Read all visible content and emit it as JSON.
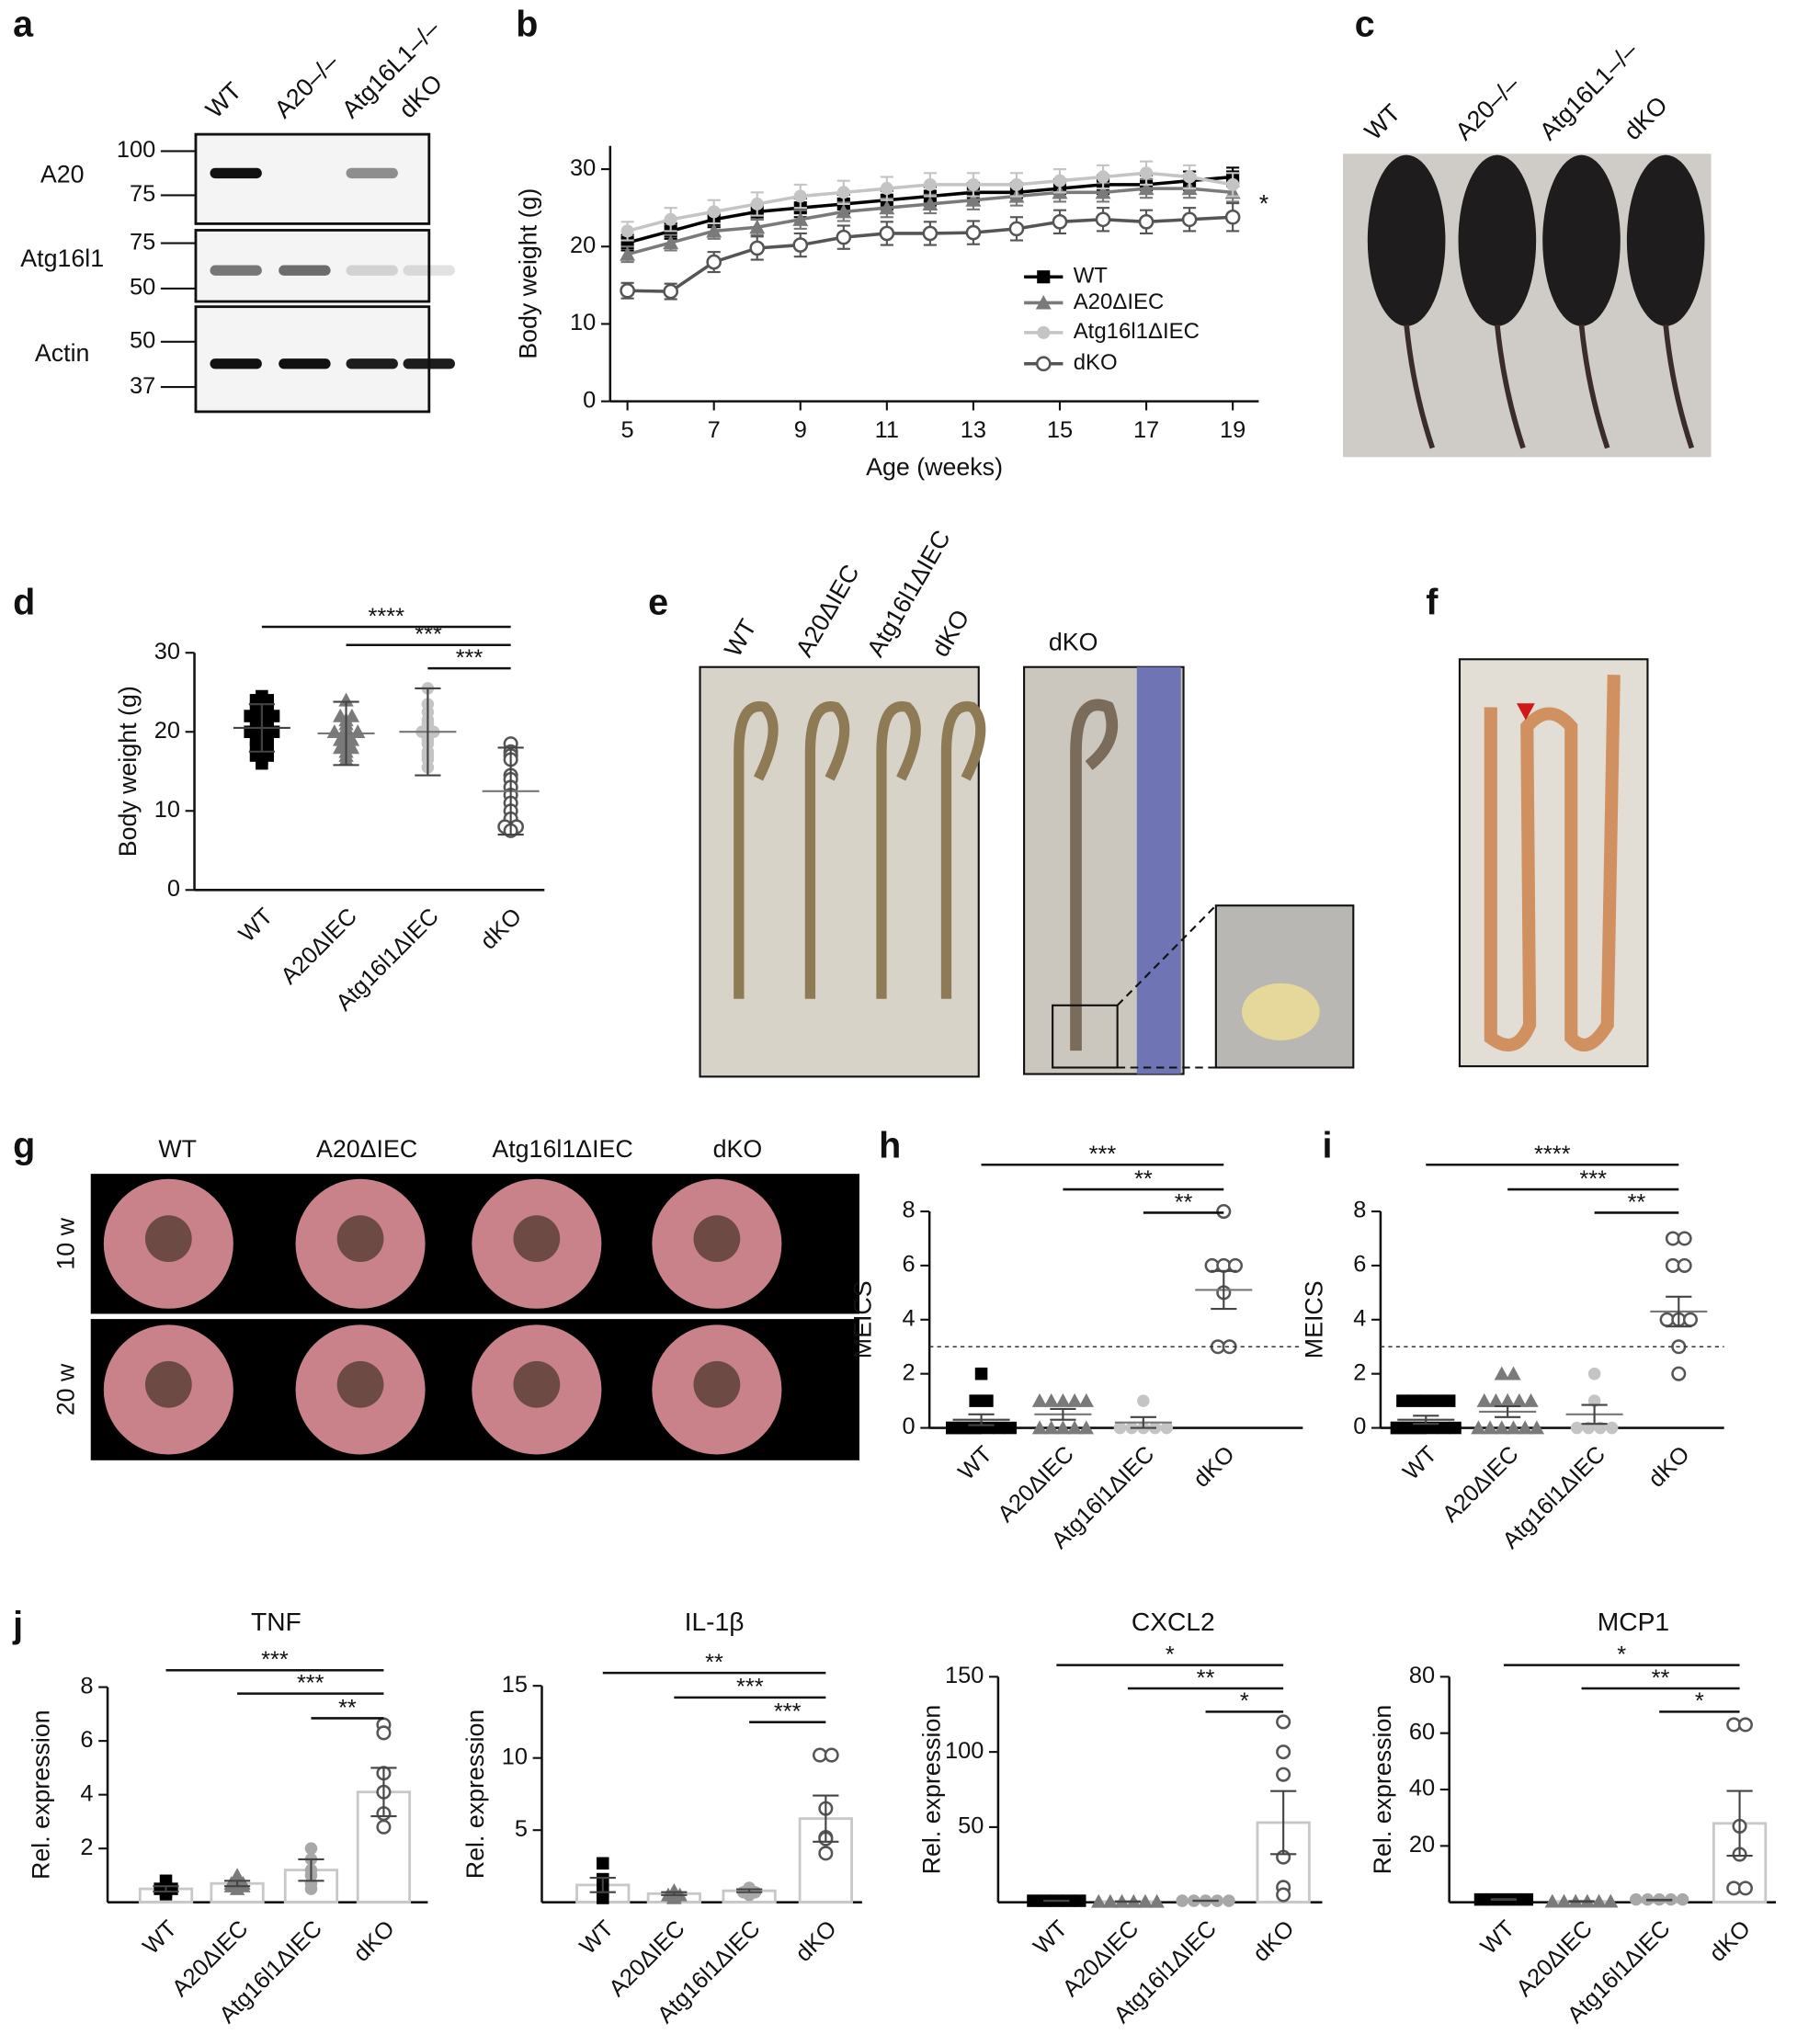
{
  "panel_labels": [
    "a",
    "b",
    "c",
    "d",
    "e",
    "f",
    "g",
    "h",
    "i",
    "j"
  ],
  "blot": {
    "lanes": [
      "WT",
      "A20–/–",
      "Atg16L1–/–",
      "dKO"
    ],
    "rows": [
      {
        "label": "A20",
        "markers": [
          "100",
          "75"
        ]
      },
      {
        "label": "Atg16l1",
        "markers": [
          "75",
          "50"
        ]
      },
      {
        "label": "Actin",
        "markers": [
          "50",
          "37"
        ]
      }
    ]
  },
  "photo_c": {
    "labels": [
      "WT",
      "A20–/–",
      "Atg16L1–/–",
      "dKO"
    ]
  },
  "photo_e": {
    "labels": [
      "WT",
      "A20ΔIEC",
      "Atg16l1ΔIEC",
      "dKO"
    ],
    "inset_label": "dKO"
  },
  "endoscopy_g": {
    "columns": [
      "WT",
      "A20ΔIEC",
      "Atg16l1ΔIEC",
      "dKO"
    ],
    "rows": [
      "10 w",
      "20 w"
    ]
  },
  "chart_data": [
    {
      "type": "line",
      "xlabel": "Age (weeks)",
      "ylabel": "Body weight (g)",
      "annotation": "*",
      "x": [
        5,
        6,
        7,
        8,
        9,
        10,
        11,
        12,
        13,
        14,
        15,
        16,
        17,
        18,
        19
      ],
      "xlim": [
        4.6,
        19.6
      ],
      "ylim": [
        0,
        33
      ],
      "xticks": [
        5,
        7,
        9,
        11,
        13,
        15,
        17,
        19
      ],
      "yticks": [
        0,
        10,
        20,
        30
      ],
      "series": [
        {
          "name": "WT",
          "color": "#000000",
          "marker": "square",
          "values": [
            20.5,
            22,
            23.5,
            24.5,
            25,
            25.5,
            26,
            26.5,
            27,
            27,
            27.5,
            28,
            28,
            28.5,
            29
          ],
          "errors": [
            1,
            1,
            1,
            1,
            1.2,
            1.2,
            1.2,
            1.2,
            1.2,
            1.2,
            1.2,
            1.2,
            1.2,
            1.2,
            1.2
          ]
        },
        {
          "name": "A20ΔIEC",
          "color": "#7a7a7a",
          "marker": "triangle",
          "values": [
            19,
            20.5,
            22,
            22.5,
            23.5,
            24.5,
            25,
            25.5,
            26,
            26.5,
            27,
            27,
            27.5,
            27.5,
            27
          ],
          "errors": [
            1,
            1,
            1,
            1,
            1.2,
            1.2,
            1.2,
            1.2,
            1.2,
            1.2,
            1.2,
            1.2,
            1.2,
            1.2,
            1.2
          ]
        },
        {
          "name": "Atg16l1ΔIEC",
          "color": "#c4c4c4",
          "marker": "circle",
          "values": [
            22,
            23.5,
            24.5,
            25.5,
            26.5,
            27,
            27.5,
            28,
            28,
            28,
            28.5,
            29,
            29.5,
            29,
            28
          ],
          "errors": [
            1.2,
            1.5,
            1.5,
            1.5,
            1.5,
            1.5,
            1.5,
            1.5,
            1.5,
            1.5,
            1.5,
            1.5,
            1.5,
            1.5,
            1.5
          ]
        },
        {
          "name": "dKO",
          "color": "#555555",
          "marker": "open-circle",
          "values": [
            14.3,
            14.2,
            18,
            19.8,
            20.2,
            21.2,
            21.7,
            21.7,
            21.8,
            22.3,
            23.2,
            23.5,
            23.2,
            23.5,
            23.8
          ],
          "errors": [
            1,
            1,
            1.3,
            1.5,
            1.5,
            1.5,
            1.5,
            1.5,
            1.5,
            1.5,
            1.5,
            1.5,
            1.5,
            1.5,
            1.8
          ]
        }
      ]
    },
    {
      "type": "dot",
      "ylabel": "Body weight (g)",
      "categories": [
        "WT",
        "A20ΔIEC",
        "Atg16l1ΔIEC",
        "dKO"
      ],
      "ylim": [
        0,
        30
      ],
      "yticks": [
        0,
        10,
        20,
        30
      ],
      "colors": [
        "#000000",
        "#7a7a7a",
        "#c4c4c4",
        "#555555"
      ],
      "markers": [
        "square",
        "triangle",
        "circle",
        "open-circle"
      ],
      "points": [
        [
          24.5,
          24,
          23.5,
          23,
          22.5,
          22,
          22,
          21.5,
          21,
          21,
          20.5,
          20,
          20,
          19.5,
          19,
          18.5,
          18,
          17.5,
          17,
          16.5,
          16,
          24,
          23,
          22,
          20,
          19,
          18,
          17
        ],
        [
          24,
          22,
          21.5,
          21,
          20.5,
          20,
          20,
          19.5,
          19,
          19,
          18.5,
          18,
          17.5,
          17,
          16.5,
          22,
          20,
          18
        ],
        [
          25.5,
          23.5,
          22.5,
          21.5,
          21,
          20,
          20,
          19.5,
          19,
          18.5,
          17.5,
          17,
          16.5,
          15.5
        ],
        [
          18.5,
          17.5,
          17,
          16.5,
          14.5,
          14,
          13,
          12,
          11,
          10,
          9,
          8,
          8,
          7.5
        ]
      ],
      "means": [
        20.5,
        19.8,
        20,
        12.5
      ],
      "errors": [
        3,
        4,
        5.5,
        5.5
      ],
      "significance": [
        "****",
        "***",
        "***"
      ]
    },
    {
      "type": "dot",
      "ylabel": "MEICS",
      "categories": [
        "WT",
        "A20ΔIEC",
        "Atg16l1ΔIEC",
        "dKO"
      ],
      "ylim": [
        0,
        8
      ],
      "yticks": [
        0,
        2,
        4,
        6,
        8
      ],
      "threshold": 3,
      "colors": [
        "#000000",
        "#7a7a7a",
        "#c4c4c4",
        "#555555"
      ],
      "markers": [
        "square",
        "triangle",
        "circle",
        "open-circle"
      ],
      "points": [
        [
          2,
          1,
          1,
          0,
          0,
          0,
          0,
          0,
          0,
          0,
          0,
          0
        ],
        [
          1,
          1,
          1,
          1,
          1,
          0,
          0,
          0,
          0,
          0
        ],
        [
          1,
          0,
          0,
          0,
          0,
          0
        ],
        [
          8,
          6,
          6,
          6,
          5,
          3,
          3
        ]
      ],
      "means": [
        0.3,
        0.5,
        0.2,
        5.1
      ],
      "errors": [
        0.2,
        0.2,
        0.2,
        0.7
      ],
      "significance": [
        "***",
        "**",
        "**"
      ]
    },
    {
      "type": "dot",
      "ylabel": "MEICS",
      "categories": [
        "WT",
        "A20ΔIEC",
        "Atg16l1ΔIEC",
        "dKO"
      ],
      "ylim": [
        0,
        8
      ],
      "yticks": [
        0,
        2,
        4,
        6,
        8
      ],
      "threshold": 3,
      "colors": [
        "#000000",
        "#7a7a7a",
        "#c4c4c4",
        "#555555"
      ],
      "markers": [
        "square",
        "triangle",
        "circle",
        "open-circle"
      ],
      "points": [
        [
          1,
          1,
          1,
          1,
          1,
          0,
          0,
          0,
          0,
          0,
          0,
          0,
          0,
          0
        ],
        [
          2,
          2,
          1,
          1,
          1,
          1,
          1,
          0,
          0,
          0,
          0,
          0,
          0
        ],
        [
          2,
          1,
          0,
          0,
          0,
          0
        ],
        [
          7,
          7,
          6,
          6,
          4,
          4,
          4,
          3,
          2
        ]
      ],
      "means": [
        0.3,
        0.6,
        0.5,
        4.3
      ],
      "errors": [
        0.15,
        0.2,
        0.35,
        0.55
      ],
      "significance": [
        "****",
        "***",
        "**"
      ]
    },
    {
      "type": "bar",
      "title": "TNF",
      "ylabel": "Rel. expression",
      "categories": [
        "WT",
        "A20ΔIEC",
        "Atg16l1ΔIEC",
        "dKO"
      ],
      "ylim": [
        0,
        8
      ],
      "yticks": [
        2,
        4,
        6,
        8
      ],
      "colors": [
        "#000000",
        "#7a7a7a",
        "#a8a8a8",
        "#555555"
      ],
      "markers": [
        "square",
        "triangle",
        "circle",
        "open-circle"
      ],
      "points": [
        [
          0.8,
          0.5,
          0.3,
          0.4,
          0.5
        ],
        [
          1,
          0.8,
          0.7,
          0.6,
          0.7,
          0.5,
          0.6
        ],
        [
          2,
          1.6,
          1.2,
          1,
          0.7,
          0.5
        ],
        [
          6.6,
          6.3,
          4.8,
          4.1,
          3.3,
          2.8
        ]
      ],
      "means": [
        0.5,
        0.7,
        1.2,
        4.1
      ],
      "errors": [
        0.1,
        0.1,
        0.4,
        0.9
      ],
      "significance": [
        "***",
        "***",
        "**"
      ]
    },
    {
      "type": "bar",
      "title": "IL-1β",
      "ylabel": "Rel. expression",
      "categories": [
        "WT",
        "A20ΔIEC",
        "Atg16l1ΔIEC",
        "dKO"
      ],
      "ylim": [
        0,
        15
      ],
      "yticks": [
        5,
        10,
        15
      ],
      "colors": [
        "#000000",
        "#7a7a7a",
        "#a8a8a8",
        "#555555"
      ],
      "markers": [
        "square",
        "triangle",
        "circle",
        "open-circle"
      ],
      "points": [
        [
          2.7,
          1.6,
          0.8,
          0.5,
          0.3
        ],
        [
          0.8,
          0.6,
          0.5,
          0.5,
          0.4,
          0.3
        ],
        [
          1,
          0.8,
          0.7,
          0.7,
          0.6,
          0.5
        ],
        [
          10.2,
          10.2,
          6.5,
          4.5,
          4.4,
          3.4
        ]
      ],
      "means": [
        1.2,
        0.6,
        0.8,
        5.8
      ],
      "errors": [
        0.5,
        0.1,
        0.1,
        1.6
      ],
      "significance": [
        "**",
        "***",
        "***"
      ]
    },
    {
      "type": "bar",
      "title": "CXCL2",
      "ylabel": "Rel. expression",
      "categories": [
        "WT",
        "A20ΔIEC",
        "Atg16l1ΔIEC",
        "dKO"
      ],
      "ylim": [
        0,
        150
      ],
      "yticks": [
        50,
        100,
        150
      ],
      "colors": [
        "#000000",
        "#7a7a7a",
        "#a8a8a8",
        "#555555"
      ],
      "markers": [
        "square",
        "triangle",
        "circle",
        "open-circle"
      ],
      "points": [
        [
          1,
          1,
          1,
          1,
          1
        ],
        [
          0.5,
          0.5,
          0.5,
          0.5,
          0.5,
          0.5
        ],
        [
          1,
          1,
          1,
          1,
          1
        ],
        [
          120,
          100,
          85,
          30,
          10,
          5
        ]
      ],
      "means": [
        1,
        0.5,
        1,
        53
      ],
      "errors": [
        0.1,
        0.1,
        0.1,
        21
      ],
      "significance": [
        "*",
        "**",
        "*"
      ]
    },
    {
      "type": "bar",
      "title": "MCP1",
      "ylabel": "Rel. expression",
      "categories": [
        "WT",
        "A20ΔIEC",
        "Atg16l1ΔIEC",
        "dKO"
      ],
      "ylim": [
        0,
        80
      ],
      "yticks": [
        20,
        40,
        60,
        80
      ],
      "colors": [
        "#000000",
        "#7a7a7a",
        "#a8a8a8",
        "#555555"
      ],
      "markers": [
        "square",
        "triangle",
        "circle",
        "open-circle"
      ],
      "points": [
        [
          1,
          1,
          1,
          1,
          1
        ],
        [
          0.3,
          0.3,
          0.3,
          0.3,
          0.3,
          0.3
        ],
        [
          1,
          1,
          1,
          1,
          1
        ],
        [
          63,
          63,
          27,
          17,
          5,
          5
        ]
      ],
      "means": [
        1,
        0.3,
        0.8,
        28
      ],
      "errors": [
        0.1,
        0.1,
        0.1,
        11.5
      ],
      "significance": [
        "*",
        "**",
        "*"
      ]
    }
  ]
}
